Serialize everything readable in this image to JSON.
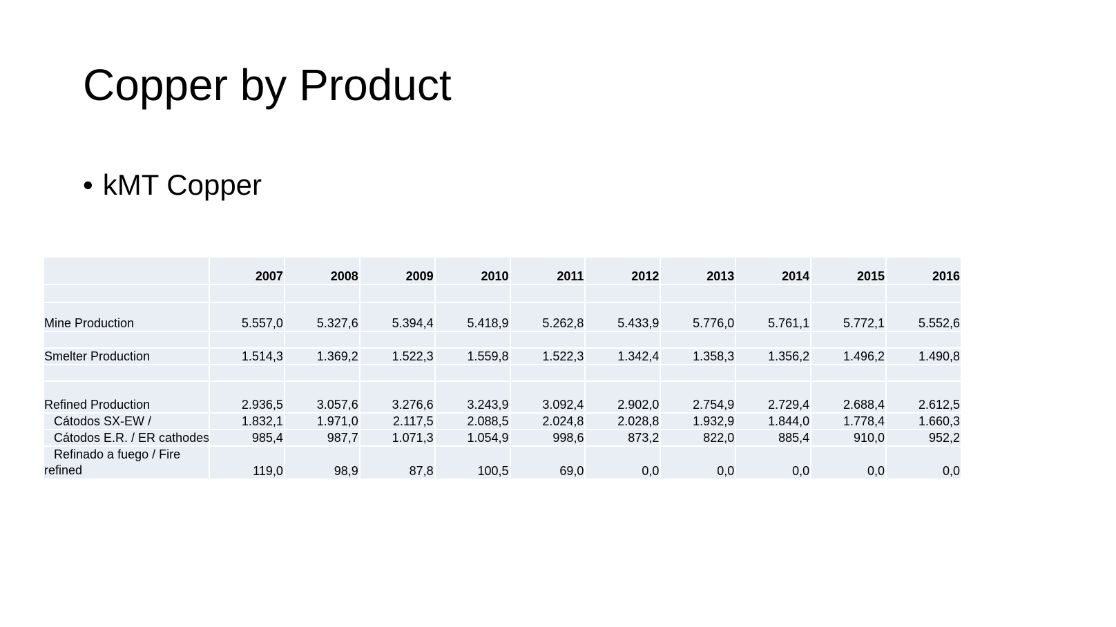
{
  "slide": {
    "title": "Copper by Product",
    "bullet": "kMT Copper"
  },
  "table": {
    "years": [
      "2007",
      "2008",
      "2009",
      "2010",
      "2011",
      "2012",
      "2013",
      "2014",
      "2015",
      "2016"
    ],
    "rows": [
      {
        "label": "Mine Production",
        "values": [
          "5.557,0",
          "5.327,6",
          "5.394,4",
          "5.418,9",
          "5.262,8",
          "5.433,9",
          "5.776,0",
          "5.761,1",
          "5.772,1",
          "5.552,6"
        ]
      },
      {
        "label": "Smelter Production",
        "values": [
          "1.514,3",
          "1.369,2",
          "1.522,3",
          "1.559,8",
          "1.522,3",
          "1.342,4",
          "1.358,3",
          "1.356,2",
          "1.496,2",
          "1.490,8"
        ]
      },
      {
        "label": "Refined Production",
        "values": [
          "2.936,5",
          "3.057,6",
          "3.276,6",
          "3.243,9",
          "3.092,4",
          "2.902,0",
          "2.754,9",
          "2.729,4",
          "2.688,4",
          "2.612,5"
        ]
      },
      {
        "label": "Cátodos SX-EW /",
        "values": [
          "1.832,1",
          "1.971,0",
          "2.117,5",
          "2.088,5",
          "2.024,8",
          "2.028,8",
          "1.932,9",
          "1.844,0",
          "1.778,4",
          "1.660,3"
        ]
      },
      {
        "label": "Cátodos E.R. / ER cathodes",
        "values": [
          "985,4",
          "987,7",
          "1.071,3",
          "1.054,9",
          "998,6",
          "873,2",
          "822,0",
          "885,4",
          "910,0",
          "952,2"
        ]
      },
      {
        "label_line1": "Refinado a fuego / Fire",
        "label_line2": "refined",
        "values": [
          "119,0",
          "98,9",
          "87,8",
          "100,5",
          "69,0",
          "0,0",
          "0,0",
          "0,0",
          "0,0",
          "0,0"
        ]
      }
    ]
  }
}
